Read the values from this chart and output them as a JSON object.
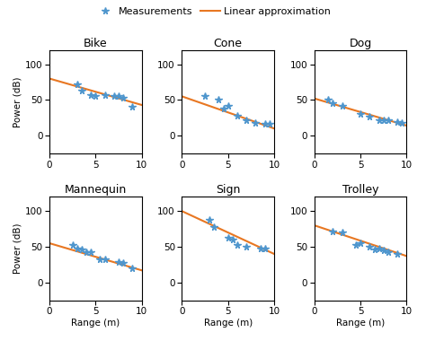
{
  "subplots": [
    {
      "title": "Bike",
      "measurements_x": [
        3.0,
        3.5,
        4.5,
        5.0,
        6.0,
        7.0,
        7.5,
        8.0,
        9.0
      ],
      "measurements_y": [
        72,
        63,
        57,
        55,
        57,
        55,
        55,
        53,
        40
      ],
      "line_x0": 0,
      "line_y0": 80,
      "line_x1": 10,
      "line_y1": 43
    },
    {
      "title": "Cone",
      "measurements_x": [
        2.5,
        4.0,
        4.5,
        5.0,
        6.0,
        7.0,
        8.0,
        9.0,
        9.5
      ],
      "measurements_y": [
        55,
        50,
        38,
        42,
        28,
        22,
        18,
        17,
        16
      ],
      "line_x0": 0,
      "line_y0": 55,
      "line_x1": 10,
      "line_y1": 10
    },
    {
      "title": "Dog",
      "measurements_x": [
        1.5,
        2.0,
        3.0,
        5.0,
        6.0,
        7.0,
        7.5,
        8.0,
        9.0,
        9.5
      ],
      "measurements_y": [
        50,
        46,
        42,
        30,
        27,
        22,
        22,
        22,
        19,
        18
      ],
      "line_x0": 0,
      "line_y0": 52,
      "line_x1": 10,
      "line_y1": 14
    },
    {
      "title": "Mannequin",
      "measurements_x": [
        2.5,
        3.0,
        3.5,
        4.0,
        4.5,
        5.5,
        6.0,
        7.5,
        8.0,
        9.0
      ],
      "measurements_y": [
        52,
        47,
        46,
        43,
        42,
        32,
        32,
        28,
        27,
        20
      ],
      "line_x0": 0,
      "line_y0": 55,
      "line_x1": 10,
      "line_y1": 17
    },
    {
      "title": "Sign",
      "measurements_x": [
        3.0,
        3.5,
        5.0,
        5.5,
        6.0,
        7.0,
        8.5,
        9.0
      ],
      "measurements_y": [
        88,
        78,
        62,
        60,
        52,
        50,
        48,
        48
      ],
      "line_x0": 0,
      "line_y0": 100,
      "line_x1": 10,
      "line_y1": 40
    },
    {
      "title": "Trolley",
      "measurements_x": [
        2.0,
        3.0,
        4.5,
        5.0,
        6.0,
        6.5,
        7.0,
        7.5,
        8.0,
        9.0
      ],
      "measurements_y": [
        72,
        70,
        53,
        55,
        50,
        46,
        48,
        45,
        43,
        40
      ],
      "line_x0": 0,
      "line_y0": 80,
      "line_x1": 10,
      "line_y1": 37
    }
  ],
  "xlim": [
    0,
    10
  ],
  "ylim": [
    -25,
    120
  ],
  "xticks": [
    0,
    5,
    10
  ],
  "yticks": [
    0,
    50,
    100
  ],
  "xlabel": "Range (m)",
  "ylabel": "Power (dB)",
  "marker_color": "#4f96cd",
  "line_color": "#e87722",
  "marker": "*",
  "marker_size": 5.5,
  "line_width": 1.5,
  "background_color": "#ffffff",
  "legend_marker_label": "Measurements",
  "legend_line_label": "Linear approximation",
  "title_fontsize": 9,
  "label_fontsize": 7.5,
  "tick_fontsize": 7.5,
  "legend_fontsize": 8
}
